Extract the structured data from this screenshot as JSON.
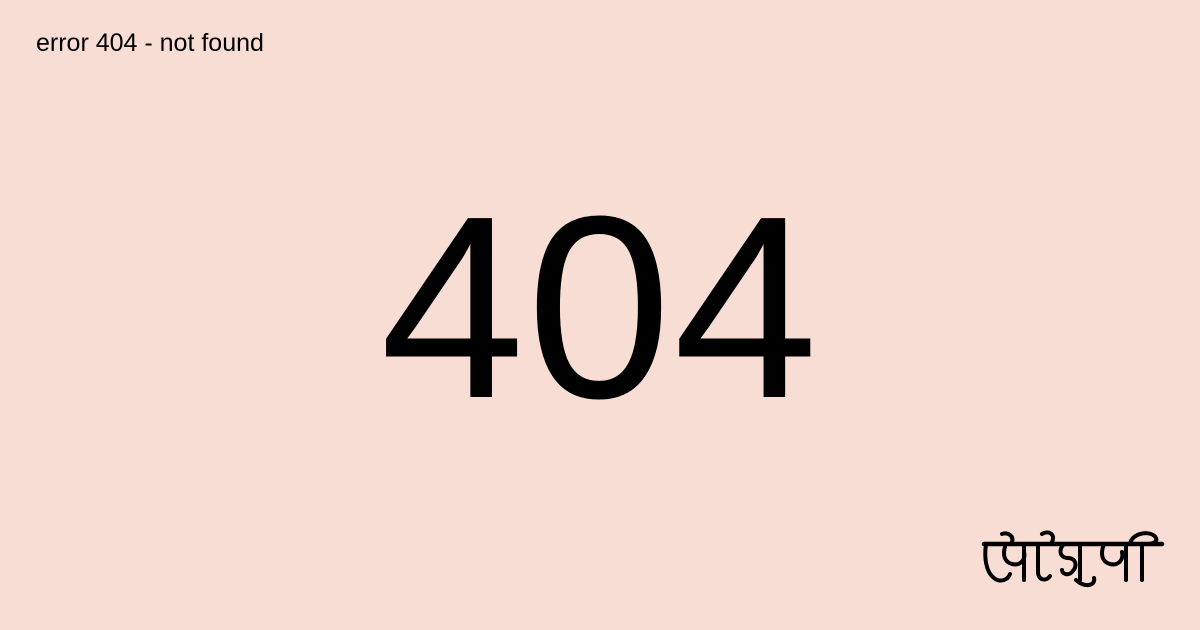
{
  "caption": "error 404 - not found",
  "code": "404",
  "logo": {
    "text": "মৌসুমী",
    "icon": "bengali-wordmark-logo"
  },
  "colors": {
    "background": "#f8ddd4",
    "text": "#000000"
  }
}
